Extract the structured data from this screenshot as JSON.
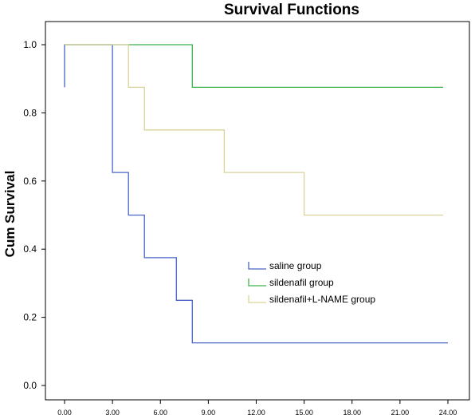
{
  "chart_data": {
    "type": "line",
    "step": true,
    "title": "Survival Functions",
    "ylabel": "Cum Survival",
    "xlabel": "",
    "xlim": [
      0,
      24
    ],
    "ylim": [
      0,
      1.0
    ],
    "x_ticks": [
      "0.00",
      "3.00",
      "6.00",
      "9.00",
      "12.00",
      "15.00",
      "18.00",
      "21.00",
      "24.00"
    ],
    "y_ticks": [
      "0.0",
      "0.2",
      "0.4",
      "0.6",
      "0.8",
      "1.0"
    ],
    "grid": false,
    "legend_position": "center-right",
    "series": [
      {
        "name": "saline group",
        "color": "#4a64c8",
        "points": [
          [
            0,
            0.875
          ],
          [
            0,
            1.0
          ],
          [
            3,
            1.0
          ],
          [
            3,
            0.625
          ],
          [
            4,
            0.625
          ],
          [
            4,
            0.5
          ],
          [
            5,
            0.5
          ],
          [
            5,
            0.375
          ],
          [
            7,
            0.375
          ],
          [
            7,
            0.25
          ],
          [
            8,
            0.25
          ],
          [
            8,
            0.125
          ],
          [
            24,
            0.125
          ]
        ]
      },
      {
        "name": "sildenafil group",
        "color": "#3cb44a",
        "points": [
          [
            0,
            1.0
          ],
          [
            8,
            1.0
          ],
          [
            8,
            0.875
          ],
          [
            23.7,
            0.875
          ]
        ]
      },
      {
        "name": "sildenafil+L-NAME group",
        "color": "#d9d39a",
        "points": [
          [
            0,
            1.0
          ],
          [
            4,
            1.0
          ],
          [
            4,
            0.875
          ],
          [
            5,
            0.875
          ],
          [
            5,
            0.75
          ],
          [
            10,
            0.75
          ],
          [
            10,
            0.625
          ],
          [
            15,
            0.625
          ],
          [
            15,
            0.5
          ],
          [
            23.7,
            0.5
          ]
        ]
      }
    ]
  }
}
